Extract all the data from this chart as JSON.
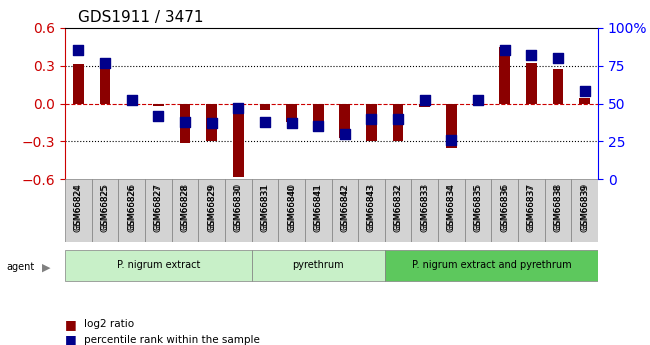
{
  "title": "GDS1911 / 3471",
  "samples": [
    "GSM66824",
    "GSM66825",
    "GSM66826",
    "GSM66827",
    "GSM66828",
    "GSM66829",
    "GSM66830",
    "GSM66831",
    "GSM66840",
    "GSM66841",
    "GSM66842",
    "GSM66843",
    "GSM66832",
    "GSM66833",
    "GSM66834",
    "GSM66835",
    "GSM66836",
    "GSM66837",
    "GSM66838",
    "GSM66839"
  ],
  "log2_ratio": [
    0.31,
    0.32,
    0.0,
    -0.02,
    -0.31,
    -0.3,
    -0.58,
    -0.05,
    -0.15,
    -0.18,
    -0.27,
    -0.3,
    -0.3,
    -0.03,
    -0.35,
    0.0,
    0.45,
    0.32,
    0.27,
    0.04
  ],
  "percentile": [
    85,
    77,
    52,
    42,
    38,
    37,
    47,
    38,
    37,
    35,
    30,
    40,
    40,
    52,
    26,
    52,
    85,
    82,
    80,
    58
  ],
  "groups": [
    {
      "label": "P. nigrum extract",
      "start": 0,
      "end": 7,
      "color": "#90EE90"
    },
    {
      "label": "pyrethrum",
      "start": 7,
      "end": 12,
      "color": "#90EE90"
    },
    {
      "label": "P. nigrum extract and pyrethrum",
      "start": 12,
      "end": 20,
      "color": "#32CD32"
    }
  ],
  "group_boundaries": [
    0,
    7,
    12,
    20
  ],
  "ylim_left": [
    -0.6,
    0.6
  ],
  "ylim_right": [
    0,
    100
  ],
  "yticks_left": [
    -0.6,
    -0.3,
    0.0,
    0.3,
    0.6
  ],
  "yticks_right": [
    0,
    25,
    50,
    75,
    100
  ],
  "bar_color": "#8B0000",
  "dot_color": "#00008B",
  "hline_color": "#CC0000",
  "hline_style": "--",
  "gridline_color": "#000000",
  "gridline_style": ":"
}
